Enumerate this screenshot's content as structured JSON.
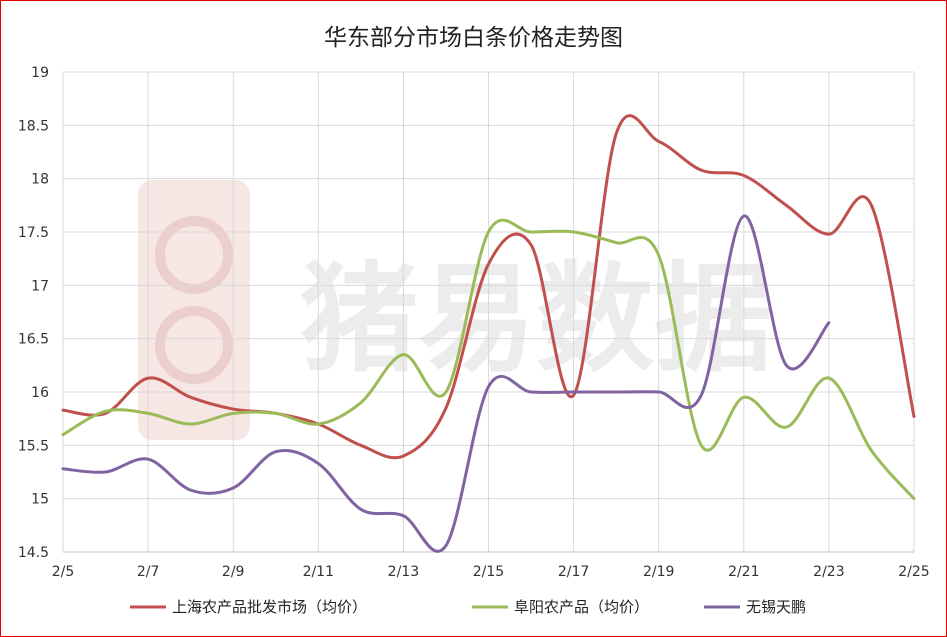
{
  "chart_data": {
    "type": "line",
    "title": "华东部分市场白条价格走势图",
    "xlabel": "",
    "ylabel": "",
    "x": [
      "2/5",
      "2/6",
      "2/7",
      "2/8",
      "2/9",
      "2/10",
      "2/11",
      "2/12",
      "2/13",
      "2/14",
      "2/15",
      "2/16",
      "2/17",
      "2/18",
      "2/19",
      "2/20",
      "2/21",
      "2/22",
      "2/23",
      "2/24",
      "2/25"
    ],
    "x_tick_labels": [
      "2/5",
      "2/7",
      "2/9",
      "2/11",
      "2/13",
      "2/15",
      "2/17",
      "2/19",
      "2/21",
      "2/23",
      "2/25"
    ],
    "ylim": [
      14.5,
      19
    ],
    "y_ticks": [
      "14.5",
      "15",
      "15.5",
      "16",
      "16.5",
      "17",
      "17.5",
      "18",
      "18.5",
      "19"
    ],
    "grid": true,
    "legend_position": "bottom",
    "series": [
      {
        "name": "上海农产品批发市场（均价）",
        "color": "#c0504d",
        "values": [
          15.83,
          15.8,
          16.13,
          15.95,
          15.84,
          15.8,
          15.7,
          15.5,
          15.4,
          15.85,
          17.2,
          17.38,
          15.97,
          18.42,
          18.35,
          18.08,
          18.03,
          17.75,
          17.48,
          17.75,
          15.77
        ]
      },
      {
        "name": "阜阳农产品（均价）",
        "color": "#9bbb59",
        "values": [
          15.6,
          15.82,
          15.8,
          15.7,
          15.8,
          15.8,
          15.7,
          15.9,
          16.35,
          16.0,
          17.5,
          17.5,
          17.5,
          17.4,
          17.28,
          15.5,
          15.95,
          15.67,
          16.13,
          15.45,
          15.0
        ]
      },
      {
        "name": "无锡天鹏",
        "color": "#8064a2",
        "values": [
          15.28,
          15.25,
          15.37,
          15.08,
          15.1,
          15.44,
          15.33,
          14.9,
          14.84,
          14.56,
          16.05,
          16.0,
          16.0,
          16.0,
          16.0,
          15.97,
          17.65,
          16.25,
          16.65,
          null,
          null
        ]
      }
    ]
  },
  "watermark": {
    "text": "猪易数据"
  }
}
